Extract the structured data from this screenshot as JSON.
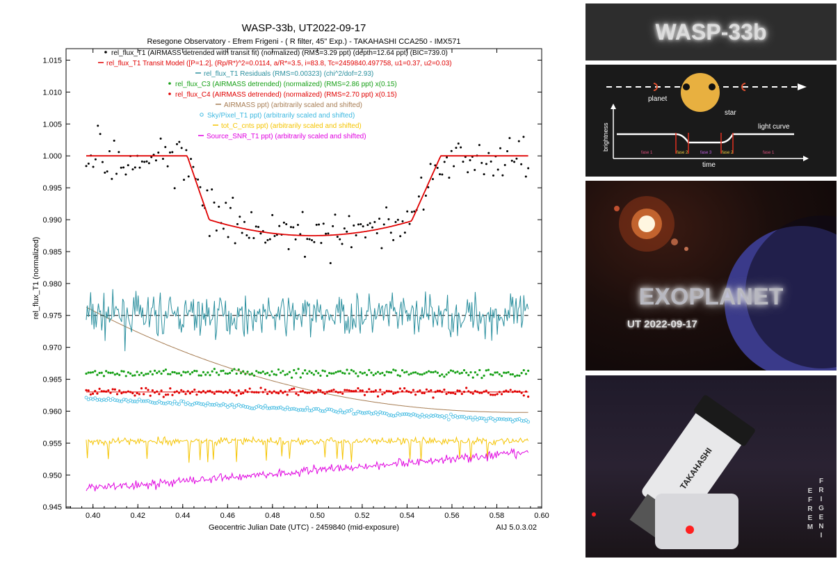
{
  "chart_data": {
    "type": "scatter",
    "title": "WASP-33b, UT2022-09-17",
    "subtitle": "Resegone Observatory - Efrem Frigeni - ( R filter, 45\" Exp.) -  TAKAHASHI CCA250 - IMX571",
    "xlabel": "Geocentric Julian Date (UTC) - 2459840 (mid-exposure)",
    "ylabel": "rel_flux_T1 (normalized)",
    "version": "AIJ 5.0.3.02",
    "xlim": [
      0.388,
      0.6
    ],
    "ylim": [
      0.9448,
      1.0168
    ],
    "x_ticks": [
      "0.40",
      "0.42",
      "0.44",
      "0.46",
      "0.48",
      "0.50",
      "0.52",
      "0.54",
      "0.56",
      "0.58",
      "0.60"
    ],
    "y_ticks": [
      "0.945",
      "0.950",
      "0.955",
      "0.960",
      "0.965",
      "0.970",
      "0.975",
      "0.980",
      "0.985",
      "0.990",
      "0.995",
      "1.000",
      "1.005",
      "1.010",
      "1.015"
    ],
    "grid": false,
    "legend_placement": "top-center",
    "series": [
      {
        "name": "rel_flux_T1 (AIRMASS detrended with transit fit) (normalized) (RMS=3.29 ppt) (depth=12.64 ppt) (BIC=739.0)",
        "marker": "•",
        "color": "#000000",
        "style": "points"
      },
      {
        "name": "rel_flux_T1 Transit Model ([P=1.2], (Rp/R*)^2=0.0114, a/R*=3.5, i=83.8, Tc=2459840.497758, u1=0.37, u2=0.03)",
        "marker": "—",
        "color": "#e00000",
        "style": "model"
      },
      {
        "name": "rel_flux_T1 Residuals (RMS=0.00323) (chi^2/dof=2.93)",
        "marker": "—",
        "color": "#2a8f9e",
        "style": "line"
      },
      {
        "name": "rel_flux_C3 (AIRMASS detrended) (normalized) (RMS=2.86 ppt) x(0.15)",
        "marker": "•",
        "color": "#16a016",
        "style": "points"
      },
      {
        "name": "rel_flux_C4 (AIRMASS detrended) (normalized) (RMS=2.70 ppt) x(0.15)",
        "marker": "•",
        "color": "#e00000",
        "style": "points"
      },
      {
        "name": "AIRMASS ppt) (arbitrarily scaled and shifted)",
        "marker": "—",
        "color": "#a67c52",
        "style": "line"
      },
      {
        "name": "Sky/Pixel_T1 ppt) (arbitrarily scaled and shifted)",
        "marker": "○",
        "color": "#3cb8e0",
        "style": "circles"
      },
      {
        "name": "tot_C_cnts ppt) (arbitrarily scaled and shifted)",
        "marker": "—",
        "color": "#f5c400",
        "style": "line"
      },
      {
        "name": "Source_SNR_T1 ppt) (arbitrarily scaled and shifted)",
        "marker": "—",
        "color": "#e000e0",
        "style": "line"
      }
    ],
    "transit_model": {
      "baseline": 1.0,
      "ingress_start": 0.442,
      "ingress_end": 0.452,
      "egress_start": 0.542,
      "egress_end": 0.555,
      "mid_time": 0.4978,
      "mid_flux": 0.9875,
      "contact_flux": 0.9898
    },
    "observation_range": [
      0.397,
      0.594
    ],
    "series_levels": {
      "residuals_baseline": 0.975,
      "C3": 0.966,
      "C4": 0.963,
      "airmass_start": 0.9763,
      "airmass_end": 0.9598,
      "sky_start": 0.962,
      "sky_end": 0.9585,
      "tot_cnts": 0.9553,
      "snr_start": 0.9478,
      "snr_end": 0.9535
    }
  },
  "panels": {
    "title_text": "WASP-33b",
    "diagram": {
      "planet_label": "planet",
      "star_label": "star",
      "y_axis_label": "brightness",
      "x_axis_label": "time",
      "curve_label": "light curve",
      "phases": [
        "fase 1",
        "fase 2",
        "fase 3",
        "fase 2",
        "fase 1"
      ]
    },
    "exo_title": "EXOPLANET",
    "exo_date": "UT 2022-09-17",
    "telescope_brand": "TAKAHASHI",
    "credit_first": "EFREM",
    "credit_last": "FRIGENI"
  },
  "colors": {
    "background": "#ffffff",
    "panel_dark": "#2d2d2d"
  }
}
